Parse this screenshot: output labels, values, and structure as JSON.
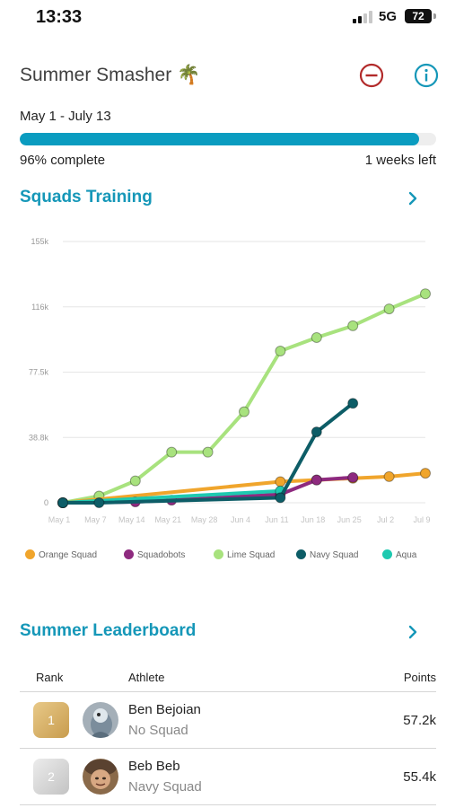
{
  "status_bar": {
    "time": "13:33",
    "network": "5G",
    "battery": "72"
  },
  "challenge": {
    "title": "Summer Smasher 🌴",
    "date_range": "May 1 - July 13",
    "progress_fraction": 0.96,
    "progress_label": "96% complete",
    "time_left": "1 weeks left",
    "icons": {
      "leave": "minus-circle-icon",
      "info": "info-circle-icon"
    },
    "colors": {
      "progress": "#0a9cc0",
      "leave_icon": "#b22a2a",
      "info_icon": "#1597b8"
    }
  },
  "squads_section": {
    "title": "Squads Training",
    "chevron_icon": "chevron-right-icon"
  },
  "chart_data": {
    "type": "line",
    "title": "",
    "xlabel": "",
    "ylabel": "",
    "x": [
      "May 1",
      "May 7",
      "May 14",
      "May 21",
      "May 28",
      "Jun 4",
      "Jun 11",
      "Jun 18",
      "Jun 25",
      "Jul 2",
      "Jul 9"
    ],
    "y_ticks": [
      "0",
      "38.8k",
      "77.5k",
      "116k",
      "155k"
    ],
    "ylim": [
      0,
      155000
    ],
    "grid": true,
    "legend_position": "bottom",
    "series": [
      {
        "name": "Orange Squad",
        "color": "#f0a52c",
        "values": [
          0,
          null,
          null,
          null,
          null,
          null,
          12500,
          13500,
          14500,
          15500,
          17500
        ]
      },
      {
        "name": "Squadobots",
        "color": "#8e2a7f",
        "values": [
          0,
          null,
          500,
          1500,
          null,
          null,
          5000,
          13500,
          15000,
          null,
          null
        ]
      },
      {
        "name": "Lime Squad",
        "color": "#a8e27e",
        "values": [
          0,
          4000,
          13000,
          30000,
          30000,
          54000,
          90000,
          98000,
          105000,
          115000,
          124000
        ]
      },
      {
        "name": "Navy Squad",
        "color": "#0d5d67",
        "values": [
          0,
          0,
          null,
          null,
          null,
          null,
          3000,
          42000,
          59000,
          null,
          null
        ]
      },
      {
        "name": "Aqua",
        "color": "#1ec9b0",
        "values": [
          0,
          null,
          null,
          null,
          null,
          null,
          7000,
          null,
          null,
          null,
          null
        ]
      }
    ]
  },
  "leaderboard": {
    "title": "Summer Leaderboard",
    "chevron_icon": "chevron-right-icon",
    "headers": {
      "rank": "Rank",
      "athlete": "Athlete",
      "points": "Points"
    },
    "rows": [
      {
        "rank": "1",
        "name": "Ben Bejoian",
        "squad": "No Squad",
        "points": "57.2k",
        "badge_color": "#d6b06a"
      },
      {
        "rank": "2",
        "name": "Beb Beb",
        "squad": "Navy Squad",
        "points": "55.4k",
        "badge_color": "#cfcfcf"
      }
    ]
  }
}
